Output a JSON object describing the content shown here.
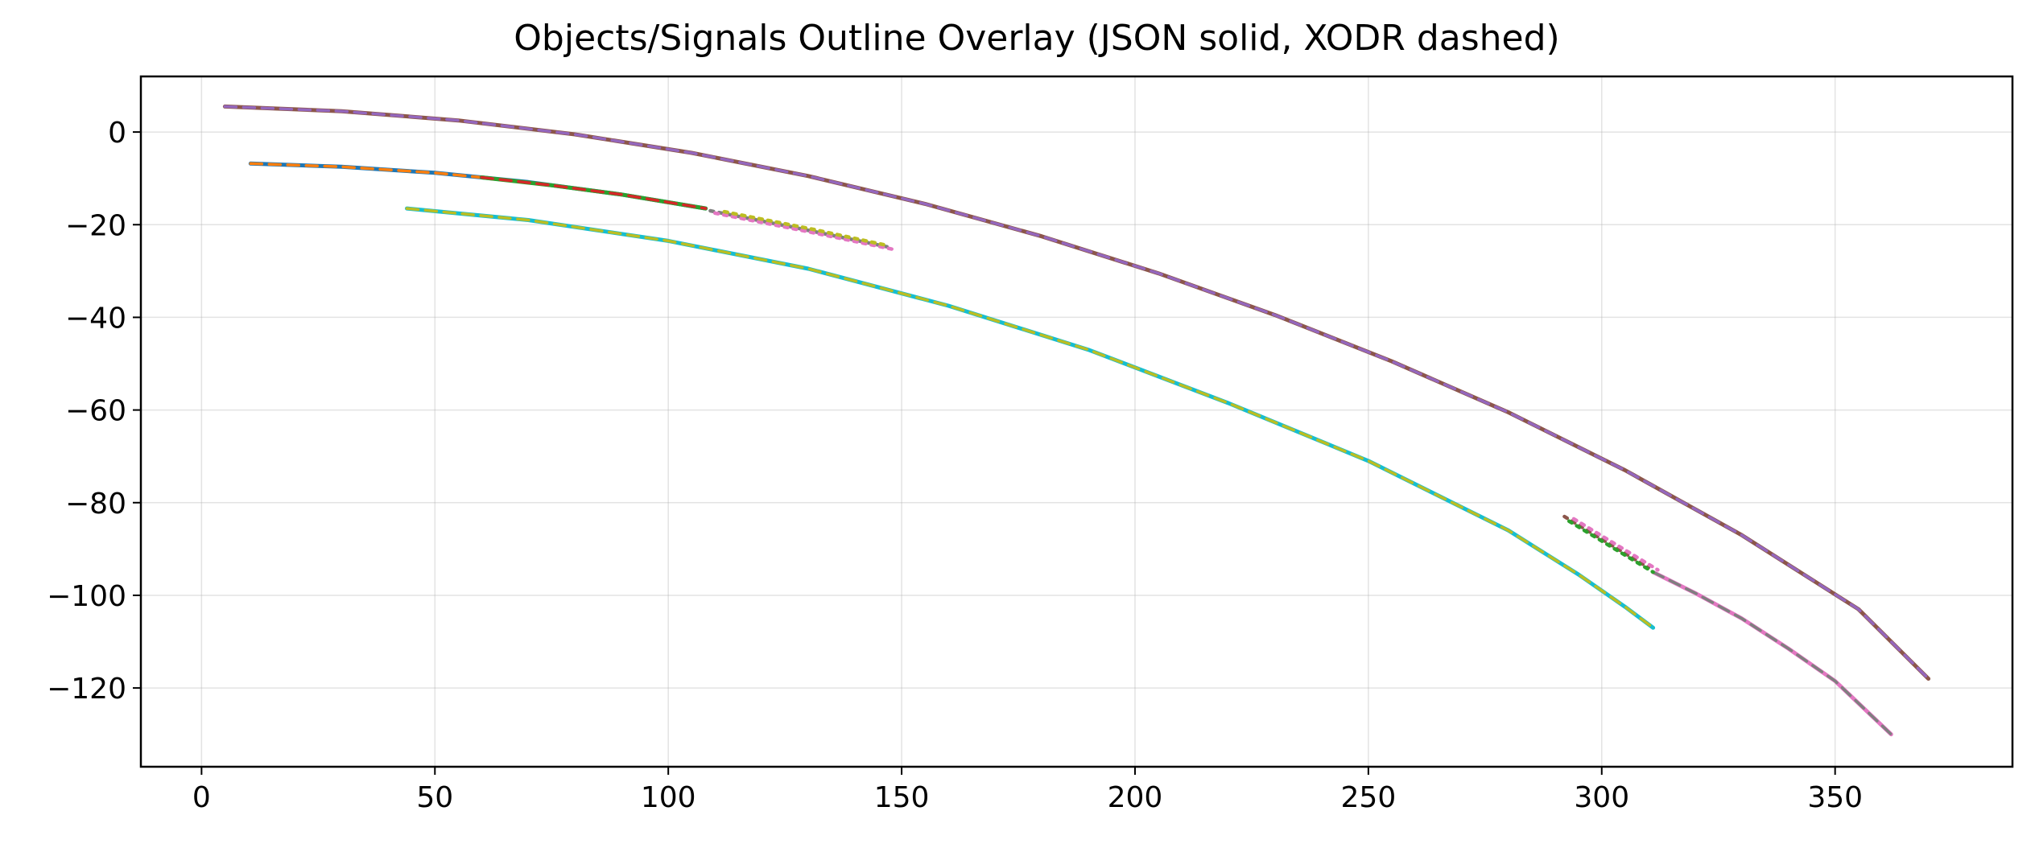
{
  "chart_data": {
    "type": "line",
    "title": "Objects/Signals Outline Overlay (JSON solid, XODR dashed)",
    "xlabel": "",
    "ylabel": "",
    "xlim": [
      -13,
      388
    ],
    "ylim": [
      -137,
      12
    ],
    "x_ticks": [
      0,
      50,
      100,
      150,
      200,
      250,
      300,
      350
    ],
    "y_ticks": [
      0,
      -20,
      -40,
      -60,
      -80,
      -100,
      -120
    ],
    "grid": true,
    "legend": "none",
    "series": [
      {
        "color": "#8c564b",
        "style": "solid",
        "x": [
          5,
          30,
          55,
          80,
          105,
          130,
          155,
          180,
          205,
          230,
          255,
          280,
          305,
          330,
          355,
          370
        ],
        "y": [
          5.5,
          4.5,
          2.5,
          -0.5,
          -4.5,
          -9.5,
          -15.5,
          -22.5,
          -30.5,
          -39.5,
          -49.5,
          -60.5,
          -73,
          -87,
          -103,
          -118
        ]
      },
      {
        "color": "#9467bd",
        "style": "dashed",
        "x": [
          5,
          30,
          55,
          80,
          105,
          130,
          155,
          180,
          205,
          230,
          255,
          280,
          305,
          330,
          355,
          370
        ],
        "y": [
          5.5,
          4.5,
          2.5,
          -0.5,
          -4.5,
          -9.5,
          -15.5,
          -22.5,
          -30.5,
          -39.5,
          -49.5,
          -60.5,
          -73,
          -87,
          -103,
          -118
        ]
      },
      {
        "color": "#1f77b4",
        "style": "solid",
        "x": [
          10.5,
          30,
          50,
          70,
          90,
          108
        ],
        "y": [
          -6.8,
          -7.5,
          -8.8,
          -10.8,
          -13.5,
          -16.5
        ]
      },
      {
        "color": "#ff7f0e",
        "style": "dashed",
        "x": [
          10.5,
          30,
          50,
          70,
          90,
          108
        ],
        "y": [
          -6.8,
          -7.5,
          -8.8,
          -10.8,
          -13.5,
          -16.5
        ]
      },
      {
        "color": "#2ca02c",
        "style": "solid",
        "x": [
          60,
          75,
          90,
          108
        ],
        "y": [
          -9.8,
          -11.5,
          -13.5,
          -16.5
        ]
      },
      {
        "color": "#d62728",
        "style": "dashed",
        "x": [
          60,
          75,
          90,
          108
        ],
        "y": [
          -9.8,
          -11.5,
          -13.5,
          -16.5
        ]
      },
      {
        "color": "#7f7f7f",
        "style": "dotted",
        "x": [
          109,
          128,
          148
        ],
        "y": [
          -17,
          -20.8,
          -25
        ]
      },
      {
        "color": "#e377c2",
        "style": "dotted",
        "x": [
          110,
          129,
          149
        ],
        "y": [
          -17.5,
          -21.3,
          -25.5
        ]
      },
      {
        "color": "#bcbd22",
        "style": "dotted",
        "x": [
          112,
          131,
          147
        ],
        "y": [
          -17.2,
          -21,
          -24.5
        ]
      },
      {
        "color": "#17becf",
        "style": "solid",
        "x": [
          44,
          70,
          100,
          130,
          160,
          190,
          220,
          250,
          280,
          295,
          305,
          311
        ],
        "y": [
          -16.5,
          -19,
          -23.5,
          -29.5,
          -37.5,
          -47,
          -58.5,
          -71,
          -86,
          -95.5,
          -102.5,
          -107
        ]
      },
      {
        "color": "#bcbd22",
        "style": "dashed",
        "x": [
          44,
          70,
          100,
          130,
          160,
          190,
          220,
          250,
          280,
          295,
          305,
          311
        ],
        "y": [
          -16.5,
          -19,
          -23.5,
          -29.5,
          -37.5,
          -47,
          -58.5,
          -71,
          -86,
          -95.5,
          -102.5,
          -107
        ]
      },
      {
        "color": "#e377c2",
        "style": "solid",
        "x": [
          311,
          320,
          330,
          340,
          350,
          362
        ],
        "y": [
          -95,
          -99.5,
          -105,
          -111.5,
          -118.5,
          -130
        ]
      },
      {
        "color": "#7f7f7f",
        "style": "dashed",
        "x": [
          311,
          320,
          330,
          340,
          350,
          362
        ],
        "y": [
          -95,
          -99.5,
          -105,
          -111.5,
          -118.5,
          -130
        ]
      },
      {
        "color": "#8c564b",
        "style": "dotted",
        "x": [
          292,
          301,
          310
        ],
        "y": [
          -83,
          -88.5,
          -94
        ]
      },
      {
        "color": "#2ca02c",
        "style": "dotted",
        "x": [
          293,
          302,
          311
        ],
        "y": [
          -84,
          -89.5,
          -95
        ]
      },
      {
        "color": "#e377c2",
        "style": "dotted",
        "x": [
          294,
          303,
          312
        ],
        "y": [
          -83.5,
          -89,
          -94.5
        ]
      }
    ]
  }
}
